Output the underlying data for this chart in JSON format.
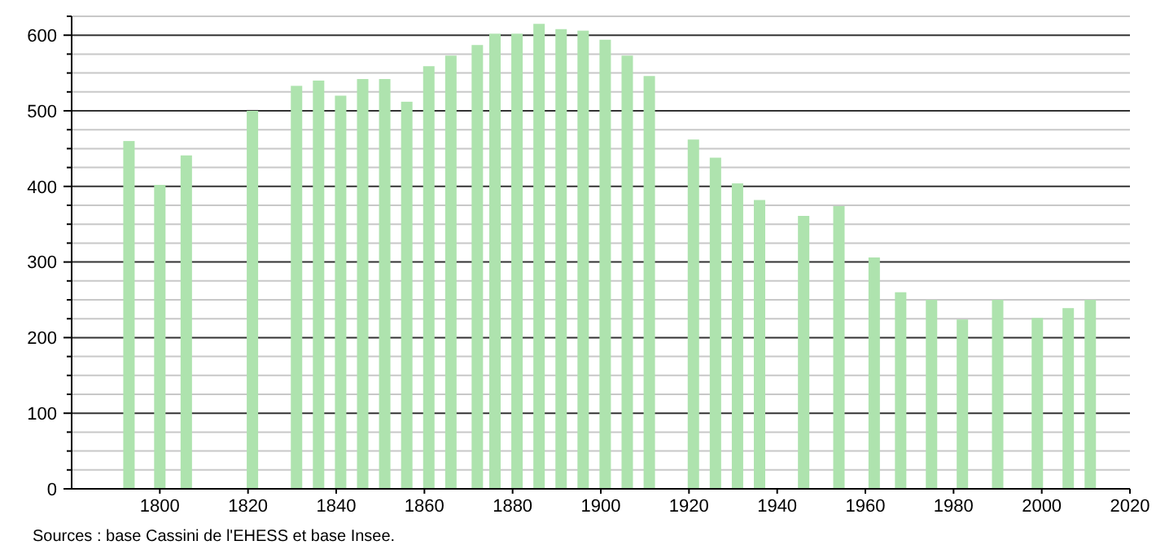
{
  "chart_data": {
    "type": "bar",
    "color": "#aee3ae",
    "x": [
      1793,
      1800,
      1806,
      1821,
      1831,
      1836,
      1841,
      1846,
      1851,
      1856,
      1861,
      1866,
      1872,
      1876,
      1881,
      1886,
      1891,
      1896,
      1901,
      1906,
      1911,
      1921,
      1926,
      1931,
      1936,
      1946,
      1954,
      1962,
      1968,
      1975,
      1982,
      1990,
      1999,
      2006,
      2011
    ],
    "values": [
      460,
      402,
      441,
      500,
      533,
      540,
      520,
      542,
      542,
      512,
      559,
      573,
      587,
      602,
      602,
      615,
      608,
      606,
      594,
      573,
      546,
      462,
      438,
      404,
      382,
      361,
      374,
      306,
      260,
      250,
      224,
      250,
      226,
      239,
      250
    ],
    "xlim": [
      1780,
      2020
    ],
    "xticks": [
      1800,
      1820,
      1840,
      1860,
      1880,
      1900,
      1920,
      1940,
      1960,
      1980,
      2000,
      2020
    ],
    "ylim": [
      0,
      625
    ],
    "yticks": [
      0,
      {
        "value": 25,
        "label": null
      },
      {
        "value": 50,
        "label": null
      },
      {
        "value": 75,
        "label": null
      },
      100,
      {
        "value": 125,
        "label": null
      },
      {
        "value": 150,
        "label": null
      },
      {
        "value": 175,
        "label": null
      },
      200,
      {
        "value": 225,
        "label": null
      },
      {
        "value": 250,
        "label": null
      },
      {
        "value": 275,
        "label": null
      },
      300,
      {
        "value": 325,
        "label": null
      },
      {
        "value": 350,
        "label": null
      },
      {
        "value": 375,
        "label": null
      },
      400,
      {
        "value": 425,
        "label": null
      },
      {
        "value": 450,
        "label": null
      },
      {
        "value": 475,
        "label": null
      },
      500,
      {
        "value": 525,
        "label": null
      },
      {
        "value": 550,
        "label": null
      },
      {
        "value": 575,
        "label": null
      },
      600,
      {
        "value": 625,
        "label": null
      }
    ],
    "grid": "y",
    "annotations": [
      "Sources : base Cassini de l'EHESS et base Insee."
    ]
  }
}
